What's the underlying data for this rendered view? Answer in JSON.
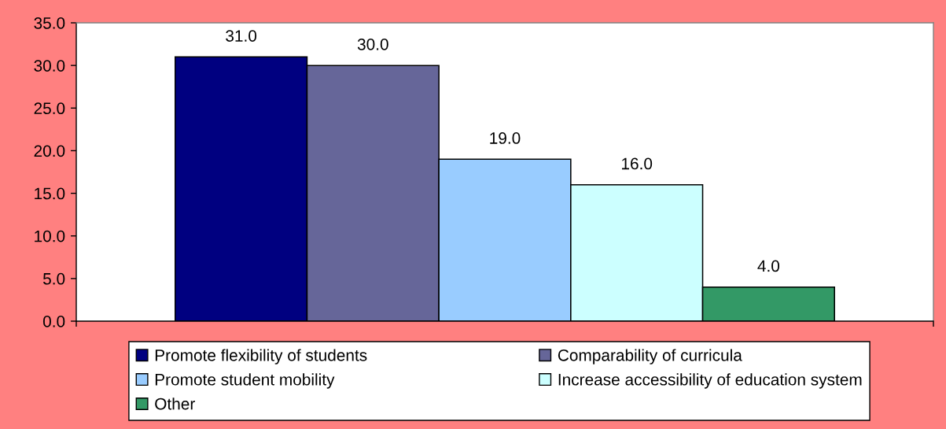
{
  "chart_data": {
    "type": "bar",
    "categories": [
      null
    ],
    "series": [
      {
        "name": "Promote flexibility of students",
        "color": "#000080",
        "values": [
          31.0
        ],
        "value_labels": [
          "31.0"
        ]
      },
      {
        "name": "Comparability of curricula",
        "color": "#666699",
        "values": [
          30.0
        ],
        "value_labels": [
          "30.0"
        ]
      },
      {
        "name": "Promote student mobility",
        "color": "#99ccff",
        "values": [
          19.0
        ],
        "value_labels": [
          "19.0"
        ]
      },
      {
        "name": "Increase accessibility of education system",
        "color": "#ccffff",
        "values": [
          16.0
        ],
        "value_labels": [
          "16.0"
        ]
      },
      {
        "name": "Other",
        "color": "#339966",
        "values": [
          4.0
        ],
        "value_labels": [
          "4.0"
        ]
      }
    ],
    "ylim": [
      0,
      35
    ],
    "yticks": [
      {
        "value": 0,
        "label": "0.0"
      },
      {
        "value": 5,
        "label": "5.0"
      },
      {
        "value": 10,
        "label": "10.0"
      },
      {
        "value": 15,
        "label": "15.0"
      },
      {
        "value": 20,
        "label": "20.0"
      },
      {
        "value": 25,
        "label": "25.0"
      },
      {
        "value": 30,
        "label": "30.0"
      },
      {
        "value": 35,
        "label": "35.0"
      }
    ],
    "grid": false,
    "legend": "bottom"
  }
}
